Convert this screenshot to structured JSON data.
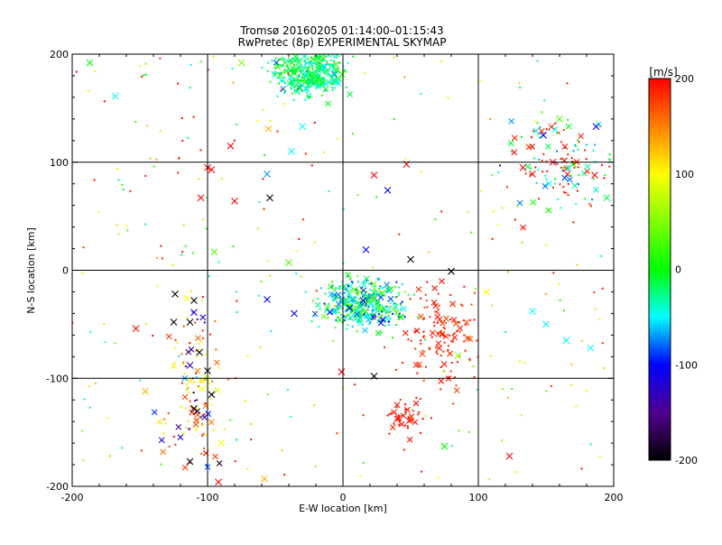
{
  "chart_data": {
    "type": "scatter",
    "title": "Tromsø 20160205 01:14:00–01:15:43",
    "subtitle": "RwPretec (8p) EXPERIMENTAL SKYMAP",
    "xlabel": "E-W location [km]",
    "ylabel": "N-S location [km]",
    "xlim": [
      -200,
      200
    ],
    "ylim": [
      -200,
      200
    ],
    "xticks": [
      "-200",
      "-100",
      "0",
      "100",
      "200"
    ],
    "yticks": [
      "-200",
      "-100",
      "0",
      "100",
      "200"
    ],
    "grid": true,
    "colorbar": {
      "label": "[m/s]",
      "range": [
        -200,
        200
      ],
      "ticks": [
        "200",
        "100",
        "0",
        "-100",
        "-200"
      ],
      "colormap": "rainbow: black (-200) → purple → blue (-100) → cyan → green (0) → yellow (100) → red (200)"
    },
    "marker_legend": "Small dots and larger × markers; color encodes Doppler velocity in m/s",
    "clusters": [
      {
        "region": "north cluster",
        "x_range": [
          -50,
          0
        ],
        "y_range": [
          165,
          200
        ],
        "velocity": "approx 0 (green/cyan)",
        "density": "very dense"
      },
      {
        "region": "central cluster",
        "x_range": [
          -10,
          40
        ],
        "y_range": [
          -50,
          -10
        ],
        "velocity": "approx -50 to 0 (cyan/green, some blue)",
        "density": "very dense"
      },
      {
        "region": "southwest cluster",
        "x_range": [
          -130,
          -90
        ],
        "y_range": [
          -180,
          -40
        ],
        "velocity": "mixed, many red/yellow",
        "density": "medium"
      },
      {
        "region": "east-southeast streak",
        "x_range": [
          50,
          100
        ],
        "y_range": [
          -100,
          -20
        ],
        "velocity": "approx 200 (red)",
        "density": "medium"
      },
      {
        "region": "northeast cluster",
        "x_range": [
          130,
          200
        ],
        "y_range": [
          55,
          140
        ],
        "velocity": "mixed, green/cyan and red",
        "density": "medium"
      },
      {
        "region": "south cluster",
        "x_range": [
          30,
          60
        ],
        "y_range": [
          -150,
          -120
        ],
        "velocity": "approx 200 (red)",
        "density": "low"
      }
    ],
    "highlighted_crosses": [
      {
        "x": -124,
        "y": -22,
        "v": -200
      },
      {
        "x": -110,
        "y": -28,
        "v": -200
      },
      {
        "x": -113,
        "y": -48,
        "v": -200
      },
      {
        "x": -125,
        "y": -48,
        "v": -200
      },
      {
        "x": -106,
        "y": -76,
        "v": -200
      },
      {
        "x": -100,
        "y": -93,
        "v": -200
      },
      {
        "x": -113,
        "y": -88,
        "v": -130
      },
      {
        "x": -110,
        "y": -128,
        "v": -200
      },
      {
        "x": -113,
        "y": -177,
        "v": -200
      },
      {
        "x": -97,
        "y": -115,
        "v": -200
      },
      {
        "x": 80,
        "y": -1,
        "v": -200
      },
      {
        "x": -54,
        "y": 67,
        "v": -200
      },
      {
        "x": 23,
        "y": -98,
        "v": -200
      },
      {
        "x": 50,
        "y": 10,
        "v": -200
      },
      {
        "x": -110,
        "y": -39,
        "v": -100
      },
      {
        "x": 17,
        "y": 19,
        "v": -100
      },
      {
        "x": 33,
        "y": 74,
        "v": -100
      },
      {
        "x": 15,
        "y": -28,
        "v": -100
      },
      {
        "x": 5,
        "y": -35,
        "v": -100
      },
      {
        "x": -36,
        "y": -40,
        "v": -100
      },
      {
        "x": -56,
        "y": -27,
        "v": -100
      },
      {
        "x": 148,
        "y": 125,
        "v": -100
      },
      {
        "x": 187,
        "y": 133,
        "v": -100
      },
      {
        "x": -56,
        "y": 89,
        "v": -70
      },
      {
        "x": -30,
        "y": 133,
        "v": -50
      },
      {
        "x": -38,
        "y": 110,
        "v": -50
      },
      {
        "x": 140,
        "y": -38,
        "v": -50
      },
      {
        "x": 150,
        "y": -50,
        "v": -50
      },
      {
        "x": 165,
        "y": -65,
        "v": -50
      },
      {
        "x": 183,
        "y": -72,
        "v": -50
      },
      {
        "x": -168,
        "y": 161,
        "v": -50
      },
      {
        "x": 195,
        "y": 67,
        "v": -10
      },
      {
        "x": -187,
        "y": 192,
        "v": 0
      },
      {
        "x": -40,
        "y": 7,
        "v": 30
      },
      {
        "x": -95,
        "y": 17,
        "v": 30
      },
      {
        "x": 85,
        "y": -79,
        "v": 50
      },
      {
        "x": 75,
        "y": -163,
        "v": 0
      },
      {
        "x": 160,
        "y": 140,
        "v": 30
      },
      {
        "x": -75,
        "y": 192,
        "v": 50
      },
      {
        "x": -104,
        "y": -110,
        "v": 100
      },
      {
        "x": -90,
        "y": -160,
        "v": 100
      },
      {
        "x": -58,
        "y": -193,
        "v": 130
      },
      {
        "x": -146,
        "y": -112,
        "v": 130
      },
      {
        "x": -55,
        "y": 131,
        "v": 130
      },
      {
        "x": 106,
        "y": -20,
        "v": 100
      },
      {
        "x": -97,
        "y": 93,
        "v": 200
      },
      {
        "x": -100,
        "y": 95,
        "v": 200
      },
      {
        "x": -105,
        "y": 67,
        "v": 200
      },
      {
        "x": -80,
        "y": 64,
        "v": 200
      },
      {
        "x": -83,
        "y": 115,
        "v": 200
      },
      {
        "x": 47,
        "y": 98,
        "v": 200
      },
      {
        "x": 23,
        "y": 88,
        "v": 200
      },
      {
        "x": 155,
        "y": 100,
        "v": 200
      },
      {
        "x": 186,
        "y": 88,
        "v": 200
      },
      {
        "x": 123,
        "y": -172,
        "v": 200
      },
      {
        "x": -92,
        "y": -196,
        "v": 200
      },
      {
        "x": -153,
        "y": -54,
        "v": 200
      },
      {
        "x": -1,
        "y": -94,
        "v": 200
      },
      {
        "x": 133,
        "y": 95,
        "v": 200
      },
      {
        "x": 140,
        "y": 89,
        "v": 200
      }
    ]
  }
}
